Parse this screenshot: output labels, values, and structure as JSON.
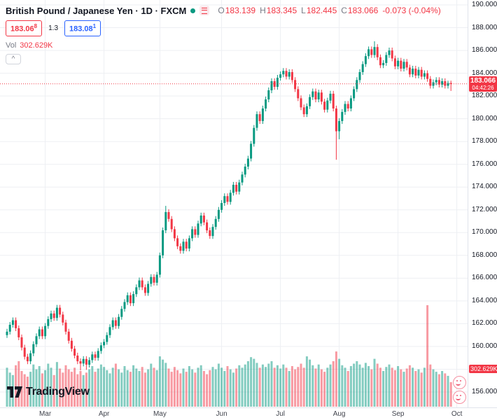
{
  "header": {
    "symbol_title": "British Pound / Japanese Yen · 1D · FXCM",
    "ohlc": {
      "o_label": "O",
      "o_value": "183.139",
      "h_label": "H",
      "h_value": "183.345",
      "l_label": "L",
      "l_value": "182.445",
      "c_label": "C",
      "c_value": "183.066",
      "change": "-0.073 (-0.04%)"
    },
    "sell_price": "183.06",
    "sell_sup": "8",
    "spread": "1.3",
    "buy_price": "183.08",
    "buy_sup": "1",
    "vol_label": "Vol",
    "vol_value": "302.629K",
    "collapse_glyph": "^"
  },
  "price_axis": {
    "last_price_label": "183.066",
    "countdown": "04:42:26",
    "volume_label": "302.629K"
  },
  "footer": {
    "logo_text": "TradingView"
  },
  "colors": {
    "up": "#089981",
    "down": "#f23645",
    "vol_up": "rgba(8,153,129,0.5)",
    "vol_down": "rgba(242,54,69,0.5)",
    "grid": "#edeff3",
    "axis_text": "#131722",
    "muted": "#787b86",
    "accent_red": "#f23645",
    "accent_blue": "#2962ff"
  },
  "chart_data": {
    "type": "candlestick",
    "title": "British Pound / Japanese Yen, 1D, FXCM",
    "series_name": "GBPJPY daily candles with volume",
    "y_axis": {
      "min": 156,
      "max": 190,
      "tick_step": 2,
      "tick_format": "#.000"
    },
    "x_axis": {
      "month_ticks": [
        {
          "label": "Mar",
          "i": 13
        },
        {
          "label": "Apr",
          "i": 33
        },
        {
          "label": "May",
          "i": 52
        },
        {
          "label": "Jun",
          "i": 73
        },
        {
          "label": "Jul",
          "i": 93
        },
        {
          "label": "Aug",
          "i": 113
        },
        {
          "label": "Sep",
          "i": 133
        },
        {
          "label": "Oct",
          "i": 153
        }
      ]
    },
    "last_price": 183.066,
    "candles": [
      [
        161.0,
        161.55,
        160.75,
        161.3
      ],
      [
        161.3,
        162.15,
        161.05,
        161.9
      ],
      [
        161.9,
        162.55,
        161.65,
        162.3
      ],
      [
        162.3,
        162.55,
        161.35,
        161.6
      ],
      [
        161.6,
        161.85,
        160.55,
        160.8
      ],
      [
        160.8,
        161.05,
        159.65,
        159.9
      ],
      [
        159.9,
        160.15,
        158.85,
        159.1
      ],
      [
        159.1,
        159.35,
        158.45,
        158.7
      ],
      [
        158.7,
        159.65,
        158.45,
        159.4
      ],
      [
        159.4,
        160.45,
        159.15,
        160.2
      ],
      [
        160.2,
        161.15,
        159.95,
        160.9
      ],
      [
        160.9,
        161.75,
        160.65,
        161.5
      ],
      [
        161.5,
        161.75,
        160.65,
        160.9
      ],
      [
        160.9,
        162.05,
        160.65,
        161.8
      ],
      [
        161.8,
        162.65,
        161.55,
        162.4
      ],
      [
        162.4,
        163.15,
        162.15,
        162.9
      ],
      [
        162.9,
        163.15,
        162.25,
        162.5
      ],
      [
        162.5,
        163.65,
        162.25,
        163.4
      ],
      [
        163.4,
        163.65,
        162.55,
        162.8
      ],
      [
        162.8,
        163.05,
        161.85,
        162.1
      ],
      [
        162.1,
        162.35,
        161.05,
        161.3
      ],
      [
        161.3,
        161.55,
        160.25,
        160.5
      ],
      [
        160.5,
        160.75,
        159.55,
        159.8
      ],
      [
        159.8,
        160.05,
        158.95,
        159.2
      ],
      [
        159.2,
        159.45,
        158.45,
        158.7
      ],
      [
        158.7,
        158.95,
        157.9,
        158.5
      ],
      [
        158.5,
        159.15,
        158.25,
        158.9
      ],
      [
        158.9,
        159.15,
        157.95,
        158.4
      ],
      [
        158.4,
        159.05,
        158.15,
        158.8
      ],
      [
        158.8,
        159.55,
        158.55,
        159.3
      ],
      [
        159.3,
        159.55,
        158.75,
        159.0
      ],
      [
        159.0,
        159.85,
        158.75,
        159.6
      ],
      [
        159.6,
        160.35,
        159.35,
        160.1
      ],
      [
        160.1,
        160.65,
        159.85,
        160.4
      ],
      [
        160.4,
        161.25,
        160.15,
        161.0
      ],
      [
        161.0,
        161.95,
        160.75,
        161.7
      ],
      [
        161.7,
        162.55,
        161.45,
        162.3
      ],
      [
        162.3,
        162.55,
        161.55,
        161.8
      ],
      [
        161.8,
        162.85,
        161.55,
        162.6
      ],
      [
        162.6,
        163.55,
        162.35,
        163.3
      ],
      [
        163.3,
        164.15,
        163.05,
        163.9
      ],
      [
        163.9,
        164.75,
        163.65,
        164.5
      ],
      [
        164.5,
        164.75,
        163.55,
        163.8
      ],
      [
        163.8,
        164.85,
        163.55,
        164.6
      ],
      [
        164.6,
        165.45,
        164.35,
        165.2
      ],
      [
        165.2,
        166.05,
        164.95,
        165.8
      ],
      [
        165.8,
        166.05,
        164.95,
        165.2
      ],
      [
        165.2,
        165.45,
        164.45,
        164.7
      ],
      [
        164.7,
        165.75,
        164.45,
        165.5
      ],
      [
        165.5,
        166.35,
        165.25,
        166.1
      ],
      [
        166.1,
        166.35,
        165.35,
        165.6
      ],
      [
        165.6,
        166.55,
        165.35,
        166.3
      ],
      [
        166.3,
        168.25,
        166.05,
        168.0
      ],
      [
        168.0,
        170.45,
        167.75,
        170.2
      ],
      [
        170.2,
        172.35,
        169.95,
        171.8
      ],
      [
        171.8,
        172.05,
        170.95,
        171.2
      ],
      [
        171.2,
        171.45,
        170.05,
        170.3
      ],
      [
        170.3,
        170.55,
        169.25,
        169.5
      ],
      [
        169.5,
        169.75,
        168.55,
        168.8
      ],
      [
        168.8,
        169.05,
        168.15,
        168.4
      ],
      [
        168.4,
        169.45,
        168.15,
        169.2
      ],
      [
        169.2,
        169.45,
        168.35,
        168.6
      ],
      [
        168.6,
        169.75,
        168.35,
        169.5
      ],
      [
        169.5,
        170.55,
        169.25,
        170.3
      ],
      [
        170.3,
        170.55,
        169.55,
        169.8
      ],
      [
        169.8,
        171.05,
        169.55,
        170.8
      ],
      [
        170.8,
        171.75,
        170.55,
        171.5
      ],
      [
        171.5,
        171.75,
        170.65,
        170.9
      ],
      [
        170.9,
        171.15,
        169.95,
        170.2
      ],
      [
        170.2,
        170.45,
        169.45,
        169.7
      ],
      [
        169.7,
        170.75,
        169.45,
        170.5
      ],
      [
        170.5,
        171.45,
        170.25,
        171.2
      ],
      [
        171.2,
        172.25,
        170.95,
        172.0
      ],
      [
        172.0,
        172.85,
        171.75,
        172.6
      ],
      [
        172.6,
        173.45,
        172.35,
        173.2
      ],
      [
        173.2,
        173.45,
        172.45,
        172.7
      ],
      [
        172.7,
        173.75,
        172.45,
        173.5
      ],
      [
        173.5,
        174.45,
        173.25,
        174.2
      ],
      [
        174.2,
        174.45,
        173.35,
        173.6
      ],
      [
        173.6,
        174.65,
        173.35,
        174.4
      ],
      [
        174.4,
        175.35,
        174.15,
        175.1
      ],
      [
        175.1,
        176.05,
        174.85,
        175.8
      ],
      [
        175.8,
        176.75,
        175.55,
        176.5
      ],
      [
        176.5,
        178.05,
        176.25,
        177.8
      ],
      [
        177.8,
        179.45,
        177.55,
        179.2
      ],
      [
        179.2,
        180.65,
        178.95,
        180.4
      ],
      [
        180.4,
        180.65,
        179.55,
        179.8
      ],
      [
        179.8,
        181.15,
        179.55,
        180.9
      ],
      [
        180.9,
        181.95,
        180.65,
        181.7
      ],
      [
        181.7,
        182.75,
        181.45,
        182.5
      ],
      [
        182.5,
        183.55,
        182.25,
        183.3
      ],
      [
        183.3,
        183.55,
        182.55,
        182.8
      ],
      [
        182.8,
        183.85,
        182.55,
        183.6
      ],
      [
        183.6,
        184.15,
        183.35,
        183.9
      ],
      [
        183.9,
        184.45,
        183.65,
        184.2
      ],
      [
        184.2,
        184.45,
        183.45,
        183.7
      ],
      [
        183.7,
        184.35,
        183.45,
        184.1
      ],
      [
        184.1,
        184.35,
        183.15,
        183.4
      ],
      [
        183.4,
        183.65,
        182.35,
        182.6
      ],
      [
        182.6,
        182.85,
        181.55,
        181.8
      ],
      [
        181.8,
        182.05,
        180.75,
        181.0
      ],
      [
        181.0,
        181.25,
        180.15,
        180.4
      ],
      [
        180.4,
        181.35,
        180.15,
        181.1
      ],
      [
        181.1,
        182.15,
        180.85,
        181.9
      ],
      [
        181.9,
        182.65,
        181.65,
        182.4
      ],
      [
        182.4,
        182.65,
        181.45,
        181.7
      ],
      [
        181.7,
        182.55,
        181.45,
        182.3
      ],
      [
        182.3,
        182.55,
        181.25,
        181.5
      ],
      [
        181.5,
        181.75,
        180.55,
        180.8
      ],
      [
        180.8,
        181.85,
        180.55,
        181.6
      ],
      [
        181.6,
        182.45,
        181.35,
        182.2
      ],
      [
        182.2,
        182.45,
        180.65,
        180.9
      ],
      [
        180.9,
        181.15,
        176.4,
        178.9
      ],
      [
        178.9,
        180.05,
        178.2,
        179.8
      ],
      [
        179.8,
        180.85,
        179.55,
        180.6
      ],
      [
        180.6,
        181.55,
        180.35,
        181.3
      ],
      [
        181.3,
        181.55,
        180.65,
        180.9
      ],
      [
        180.9,
        182.05,
        180.65,
        181.8
      ],
      [
        181.8,
        182.85,
        181.55,
        182.6
      ],
      [
        182.6,
        183.65,
        182.35,
        183.4
      ],
      [
        183.4,
        184.35,
        183.15,
        184.1
      ],
      [
        184.1,
        185.05,
        183.85,
        184.8
      ],
      [
        184.8,
        185.75,
        184.55,
        185.5
      ],
      [
        185.5,
        186.35,
        185.25,
        186.1
      ],
      [
        186.1,
        186.35,
        185.35,
        185.6
      ],
      [
        185.6,
        186.8,
        185.35,
        186.3
      ],
      [
        186.3,
        186.55,
        185.15,
        185.4
      ],
      [
        185.4,
        185.65,
        184.45,
        184.7
      ],
      [
        184.7,
        185.15,
        184.45,
        184.9
      ],
      [
        184.9,
        185.85,
        184.65,
        185.6
      ],
      [
        185.6,
        186.25,
        185.35,
        186.0
      ],
      [
        186.0,
        186.25,
        185.05,
        185.3
      ],
      [
        185.3,
        185.55,
        184.35,
        184.6
      ],
      [
        184.6,
        185.35,
        184.35,
        185.1
      ],
      [
        185.1,
        185.35,
        184.15,
        184.4
      ],
      [
        184.4,
        185.25,
        184.15,
        185.0
      ],
      [
        185.0,
        185.25,
        184.25,
        184.5
      ],
      [
        184.5,
        184.75,
        183.65,
        183.9
      ],
      [
        183.9,
        184.65,
        183.65,
        184.4
      ],
      [
        184.4,
        184.65,
        183.55,
        183.8
      ],
      [
        183.8,
        184.55,
        183.55,
        184.3
      ],
      [
        184.3,
        184.55,
        183.45,
        183.7
      ],
      [
        183.7,
        184.25,
        183.45,
        184.0
      ],
      [
        184.0,
        184.25,
        183.25,
        183.5
      ],
      [
        183.5,
        183.75,
        182.65,
        182.9
      ],
      [
        182.9,
        183.45,
        182.65,
        183.2
      ],
      [
        183.2,
        183.65,
        182.95,
        183.4
      ],
      [
        183.4,
        183.65,
        182.75,
        183.0
      ],
      [
        183.0,
        183.55,
        182.75,
        183.3
      ],
      [
        183.3,
        183.55,
        182.65,
        182.9
      ],
      [
        182.9,
        183.35,
        182.65,
        183.14
      ],
      [
        183.139,
        183.345,
        182.445,
        183.066
      ]
    ],
    "volumes_k": [
      480,
      420,
      390,
      510,
      560,
      440,
      400,
      370,
      430,
      520,
      460,
      500,
      410,
      450,
      530,
      480,
      390,
      550,
      470,
      420,
      510,
      460,
      430,
      480,
      400,
      440,
      390,
      420,
      460,
      500,
      430,
      470,
      520,
      490,
      450,
      410,
      480,
      530,
      460,
      420,
      500,
      450,
      430,
      510,
      470,
      440,
      490,
      420,
      460,
      530,
      480,
      450,
      620,
      580,
      540,
      470,
      430,
      490,
      450,
      410,
      470,
      430,
      500,
      460,
      420,
      480,
      510,
      440,
      400,
      450,
      490,
      460,
      530,
      480,
      440,
      500,
      460,
      420,
      470,
      510,
      480,
      520,
      560,
      610,
      590,
      540,
      480,
      520,
      490,
      530,
      560,
      480,
      510,
      470,
      520,
      480,
      440,
      500,
      460,
      490,
      530,
      480,
      620,
      580,
      510,
      470,
      520,
      460,
      430,
      480,
      520,
      560,
      680,
      590,
      510,
      480,
      440,
      500,
      530,
      560,
      520,
      480,
      540,
      500,
      460,
      590,
      530,
      480,
      440,
      490,
      520,
      480,
      450,
      500,
      460,
      430,
      470,
      510,
      480,
      440,
      460,
      420,
      480,
      1250,
      520,
      460,
      430,
      400,
      440,
      410,
      380,
      302.629
    ],
    "volume_max_k": 1250
  }
}
